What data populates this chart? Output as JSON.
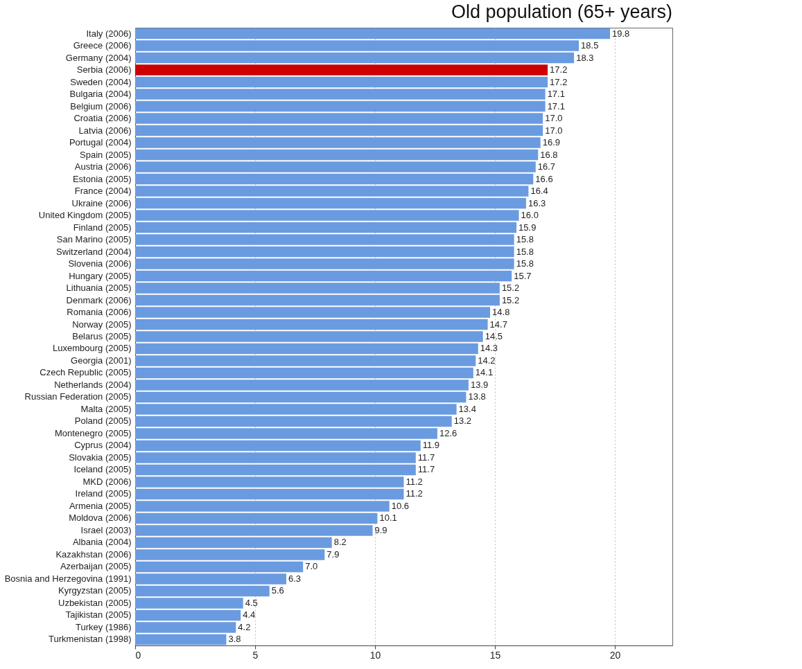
{
  "chart_data": {
    "type": "bar",
    "orientation": "horizontal",
    "title": "Old population (65+ years)",
    "categories": [
      "Italy (2006)",
      "Greece (2006)",
      "Germany (2004)",
      "Serbia (2006)",
      "Sweden (2004)",
      "Bulgaria (2004)",
      "Belgium (2006)",
      "Croatia (2006)",
      "Latvia (2006)",
      "Portugal (2004)",
      "Spain (2005)",
      "Austria (2006)",
      "Estonia (2005)",
      "France (2004)",
      "Ukraine (2006)",
      "United Kingdom (2005)",
      "Finland (2005)",
      "San Marino (2005)",
      "Switzerland (2004)",
      "Slovenia (2006)",
      "Hungary (2005)",
      "Lithuania (2005)",
      "Denmark (2006)",
      "Romania (2006)",
      "Norway (2005)",
      "Belarus (2005)",
      "Luxembourg (2005)",
      "Georgia (2001)",
      "Czech Republic (2005)",
      "Netherlands (2004)",
      "Russian Federation (2005)",
      "Malta (2005)",
      "Poland (2005)",
      "Montenegro (2005)",
      "Cyprus (2004)",
      "Slovakia (2005)",
      "Iceland (2005)",
      "MKD (2006)",
      "Ireland (2005)",
      "Armenia (2005)",
      "Moldova (2006)",
      "Israel (2003)",
      "Albania (2004)",
      "Kazakhstan (2006)",
      "Azerbaijan (2005)",
      "Bosnia and Herzegovina (1991)",
      "Kyrgyzstan (2005)",
      "Uzbekistan (2005)",
      "Tajikistan (2005)",
      "Turkey (1986)",
      "Turkmenistan (1998)"
    ],
    "values": [
      19.8,
      18.5,
      18.3,
      17.2,
      17.2,
      17.1,
      17.1,
      17.0,
      17.0,
      16.9,
      16.8,
      16.7,
      16.6,
      16.4,
      16.3,
      16.0,
      15.9,
      15.8,
      15.8,
      15.8,
      15.7,
      15.2,
      15.2,
      14.8,
      14.7,
      14.5,
      14.3,
      14.2,
      14.1,
      13.9,
      13.8,
      13.4,
      13.2,
      12.6,
      11.9,
      11.7,
      11.7,
      11.2,
      11.2,
      10.6,
      10.1,
      9.9,
      8.2,
      7.9,
      7.0,
      6.3,
      5.6,
      4.5,
      4.4,
      4.2,
      3.8
    ],
    "colors": [
      "#6a9be0",
      "#6a9be0",
      "#6a9be0",
      "#cc0000",
      "#6a9be0",
      "#6a9be0",
      "#6a9be0",
      "#6a9be0",
      "#6a9be0",
      "#6a9be0",
      "#6a9be0",
      "#6a9be0",
      "#6a9be0",
      "#6a9be0",
      "#6a9be0",
      "#6a9be0",
      "#6a9be0",
      "#6a9be0",
      "#6a9be0",
      "#6a9be0",
      "#6a9be0",
      "#6a9be0",
      "#6a9be0",
      "#6a9be0",
      "#6a9be0",
      "#6a9be0",
      "#6a9be0",
      "#6a9be0",
      "#6a9be0",
      "#6a9be0",
      "#6a9be0",
      "#6a9be0",
      "#6a9be0",
      "#6a9be0",
      "#6a9be0",
      "#6a9be0",
      "#6a9be0",
      "#6a9be0",
      "#6a9be0",
      "#6a9be0",
      "#6a9be0",
      "#6a9be0",
      "#6a9be0",
      "#6a9be0",
      "#6a9be0",
      "#6a9be0",
      "#6a9be0",
      "#6a9be0",
      "#6a9be0",
      "#6a9be0",
      "#6a9be0"
    ],
    "value_labels": [
      "19.8",
      "18.5",
      "18.3",
      "17.2",
      "17.2",
      "17.1",
      "17.1",
      "17.0",
      "17.0",
      "16.9",
      "16.8",
      "16.7",
      "16.6",
      "16.4",
      "16.3",
      "16.0",
      "15.9",
      "15.8",
      "15.8",
      "15.8",
      "15.7",
      "15.2",
      "15.2",
      "14.8",
      "14.7",
      "14.5",
      "14.3",
      "14.2",
      "14.1",
      "13.9",
      "13.8",
      "13.4",
      "13.2",
      "12.6",
      "11.9",
      "11.7",
      "11.7",
      "11.2",
      "11.2",
      "10.6",
      "10.1",
      "9.9",
      "8.2",
      "7.9",
      "7.0",
      "6.3",
      "5.6",
      "4.5",
      "4.4",
      "4.2",
      "3.8"
    ],
    "xlim": [
      0,
      22.4
    ],
    "xticks": [
      0,
      5,
      10,
      15,
      20
    ],
    "grid": "x"
  }
}
